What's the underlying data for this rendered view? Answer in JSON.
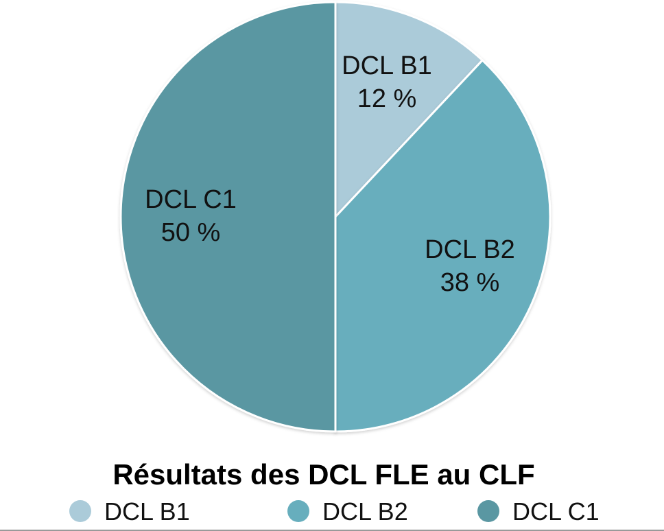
{
  "chart_data": {
    "type": "pie",
    "title": "Résultats des DCL FLE au CLF",
    "categories": [
      "DCL B1",
      "DCL B2",
      "DCL C1"
    ],
    "values": [
      12,
      38,
      50
    ],
    "value_labels": [
      "12 %",
      "38 %",
      "50 %"
    ],
    "colors": [
      "#abcbd9",
      "#67aebd",
      "#5a97a2"
    ],
    "start_angle": "12 o'clock",
    "direction": "clockwise",
    "legend": {
      "position": "bottom",
      "entries": [
        "DCL B1",
        "DCL B2",
        "DCL C1"
      ]
    }
  }
}
